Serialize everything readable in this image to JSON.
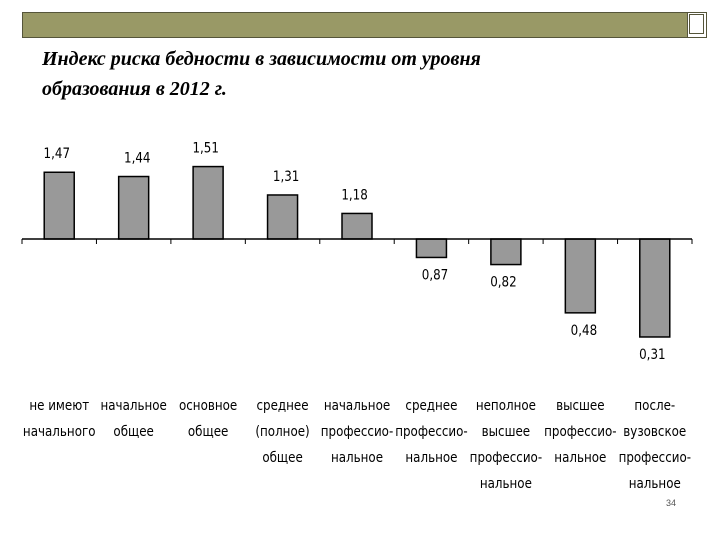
{
  "title": "Индекс риска бедности в зависимости от уровня\nобразования в 2012 г.",
  "page_number": "34",
  "colors": {
    "bar_fill": "#999999",
    "bar_stroke": "#000000",
    "header_bar": "#999966"
  },
  "chart_data": {
    "type": "bar",
    "title": "Индекс риска бедности в зависимости от уровня образования в 2012 г.",
    "xlabel": "",
    "ylabel": "",
    "baseline": 1.0,
    "categories": [
      [
        "не имеют",
        "начального"
      ],
      [
        "начальное",
        "общее"
      ],
      [
        "основное",
        "общее"
      ],
      [
        "среднее",
        "(полное)",
        "общее"
      ],
      [
        "начальное",
        "профессио-",
        "нальное"
      ],
      [
        "среднее",
        "профессио-",
        "нальное"
      ],
      [
        "неполное",
        "высшее",
        "профессио-",
        "нальное"
      ],
      [
        "высшее",
        "профессио-",
        "нальное"
      ],
      [
        "после-",
        "вузовское",
        "профессио-",
        "нальное"
      ]
    ],
    "values": [
      1.47,
      1.44,
      1.51,
      1.31,
      1.18,
      0.87,
      0.82,
      0.48,
      0.31
    ],
    "value_labels": [
      "1,47",
      "1,44",
      "1,51",
      "1,31",
      "1,18",
      "0,87",
      "0,82",
      "0,48",
      "0,31"
    ],
    "grid": false,
    "legend": "none"
  }
}
